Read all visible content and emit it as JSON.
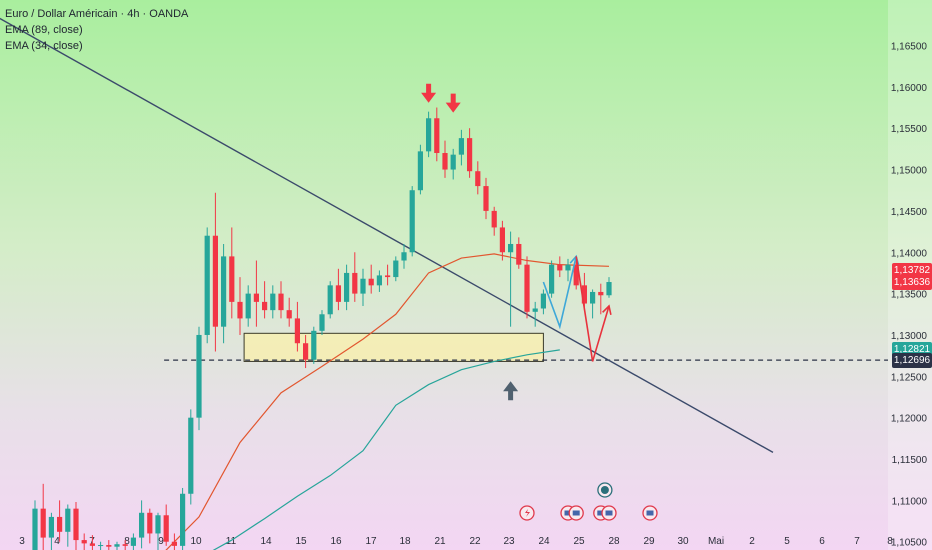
{
  "chart_data": {
    "type": "candlestick",
    "title": "Euro / Dollar Américain · 4h · OANDA",
    "indicators": [
      {
        "label": "EMA (89, close)",
        "color": "#e2562f"
      },
      {
        "label": "EMA (34, close)",
        "color": "#27a59a"
      }
    ],
    "xlabels": [
      "3",
      "4",
      "7",
      "8",
      "9",
      "10",
      "11",
      "14",
      "15",
      "16",
      "17",
      "18",
      "21",
      "22",
      "23",
      "24",
      "25",
      "28",
      "29",
      "30",
      "Mai",
      "2",
      "5",
      "6",
      "7",
      "8"
    ],
    "yticks": [
      "1,16500",
      "1,16000",
      "1,15500",
      "1,15000",
      "1,14500",
      "1,14000",
      "1,13500",
      "1,13000",
      "1,12500",
      "1,12000",
      "1,11500",
      "1,11000",
      "1,10500"
    ],
    "ylim": [
      1.104,
      1.1705
    ],
    "price_labels": [
      {
        "value": "1,13782",
        "price": 1.13782,
        "color": "#f23645"
      },
      {
        "value": "1,13636",
        "price": 1.13636,
        "color": "#f23645"
      },
      {
        "value": "1,12821",
        "price": 1.12821,
        "color": "#26a69a"
      },
      {
        "value": "1,12696",
        "price": 1.12696,
        "color": "#2b3247"
      }
    ],
    "dashed_level": 1.12696,
    "colors": {
      "up": "#26a69a",
      "down": "#f23645",
      "trendline": "#3b4a6b",
      "zone": "#f7efb0"
    },
    "candles": [
      [
        1.104,
        1.11,
        1.1034,
        1.109
      ],
      [
        1.109,
        1.112,
        1.104,
        1.1055
      ],
      [
        1.1055,
        1.1085,
        1.104,
        1.108
      ],
      [
        1.108,
        1.11,
        1.105,
        1.1062
      ],
      [
        1.1062,
        1.1095,
        1.1044,
        1.109
      ],
      [
        1.109,
        1.1098,
        1.104,
        1.1052
      ],
      [
        1.1052,
        1.106,
        1.104,
        1.1048
      ],
      [
        1.1048,
        1.1058,
        1.104,
        1.1045
      ],
      [
        1.1045,
        1.105,
        1.104,
        1.1046
      ],
      [
        1.1046,
        1.1052,
        1.104,
        1.1044
      ],
      [
        1.1044,
        1.105,
        1.104,
        1.1047
      ],
      [
        1.1047,
        1.1052,
        1.104,
        1.1045
      ],
      [
        1.1045,
        1.106,
        1.104,
        1.1055
      ],
      [
        1.1055,
        1.11,
        1.1042,
        1.1085
      ],
      [
        1.1085,
        1.109,
        1.1048,
        1.106
      ],
      [
        1.106,
        1.1085,
        1.104,
        1.1082
      ],
      [
        1.1082,
        1.1095,
        1.1045,
        1.105
      ],
      [
        1.105,
        1.106,
        1.104,
        1.1045
      ],
      [
        1.1045,
        1.1115,
        1.104,
        1.1108
      ],
      [
        1.1108,
        1.121,
        1.1095,
        1.12
      ],
      [
        1.12,
        1.131,
        1.1185,
        1.13
      ],
      [
        1.13,
        1.143,
        1.129,
        1.142
      ],
      [
        1.142,
        1.1472,
        1.128,
        1.131
      ],
      [
        1.131,
        1.141,
        1.129,
        1.1395
      ],
      [
        1.1395,
        1.143,
        1.132,
        1.134
      ],
      [
        1.134,
        1.137,
        1.13,
        1.132
      ],
      [
        1.132,
        1.136,
        1.131,
        1.135
      ],
      [
        1.135,
        1.139,
        1.131,
        1.134
      ],
      [
        1.134,
        1.1365,
        1.132,
        1.133
      ],
      [
        1.133,
        1.136,
        1.132,
        1.135
      ],
      [
        1.135,
        1.1365,
        1.132,
        1.133
      ],
      [
        1.133,
        1.1345,
        1.131,
        1.132
      ],
      [
        1.132,
        1.134,
        1.128,
        1.129
      ],
      [
        1.129,
        1.13,
        1.126,
        1.127
      ],
      [
        1.127,
        1.131,
        1.1265,
        1.1305
      ],
      [
        1.1305,
        1.133,
        1.13,
        1.1325
      ],
      [
        1.1325,
        1.1365,
        1.132,
        1.136
      ],
      [
        1.136,
        1.138,
        1.133,
        1.134
      ],
      [
        1.134,
        1.1385,
        1.133,
        1.1375
      ],
      [
        1.1375,
        1.14,
        1.134,
        1.135
      ],
      [
        1.135,
        1.138,
        1.1335,
        1.1368
      ],
      [
        1.1368,
        1.1385,
        1.135,
        1.136
      ],
      [
        1.136,
        1.1378,
        1.1352,
        1.1372
      ],
      [
        1.1372,
        1.1385,
        1.136,
        1.137
      ],
      [
        1.137,
        1.1395,
        1.1365,
        1.139
      ],
      [
        1.139,
        1.141,
        1.138,
        1.14
      ],
      [
        1.14,
        1.148,
        1.1395,
        1.1475
      ],
      [
        1.1475,
        1.153,
        1.147,
        1.1522
      ],
      [
        1.1522,
        1.157,
        1.1515,
        1.1562
      ],
      [
        1.1562,
        1.1575,
        1.151,
        1.152
      ],
      [
        1.152,
        1.1535,
        1.149,
        1.15
      ],
      [
        1.15,
        1.1525,
        1.1488,
        1.1518
      ],
      [
        1.1518,
        1.1548,
        1.1505,
        1.1538
      ],
      [
        1.1538,
        1.155,
        1.149,
        1.1498
      ],
      [
        1.1498,
        1.151,
        1.147,
        1.148
      ],
      [
        1.148,
        1.149,
        1.144,
        1.145
      ],
      [
        1.145,
        1.1455,
        1.142,
        1.143
      ],
      [
        1.143,
        1.1438,
        1.139,
        1.14
      ],
      [
        1.14,
        1.1425,
        1.131,
        1.141
      ],
      [
        1.141,
        1.1418,
        1.138,
        1.1385
      ],
      [
        1.1385,
        1.1395,
        1.132,
        1.1328
      ],
      [
        1.1328,
        1.134,
        1.131,
        1.1332
      ],
      [
        1.1332,
        1.1355,
        1.1325,
        1.135
      ],
      [
        1.135,
        1.139,
        1.1345,
        1.1385
      ],
      [
        1.1385,
        1.1395,
        1.137,
        1.1378
      ],
      [
        1.1378,
        1.1392,
        1.1365,
        1.1385
      ],
      [
        1.1385,
        1.1395,
        1.1355,
        1.136
      ],
      [
        1.136,
        1.1375,
        1.133,
        1.1338
      ],
      [
        1.1338,
        1.1355,
        1.132,
        1.1352
      ],
      [
        1.1352,
        1.1362,
        1.1325,
        1.1348
      ],
      [
        1.1348,
        1.137,
        1.1345,
        1.1364
      ]
    ],
    "ema89": [
      [
        15,
        1.103
      ],
      [
        20,
        1.108
      ],
      [
        25,
        1.117
      ],
      [
        30,
        1.123
      ],
      [
        35,
        1.1262
      ],
      [
        40,
        1.1295
      ],
      [
        44,
        1.1325
      ],
      [
        48,
        1.1375
      ],
      [
        52,
        1.1393
      ],
      [
        56,
        1.1398
      ],
      [
        60,
        1.139
      ],
      [
        64,
        1.1385
      ],
      [
        70,
        1.1383
      ]
    ],
    "ema34": [
      [
        20,
        1.103
      ],
      [
        24,
        1.1052
      ],
      [
        28,
        1.1078
      ],
      [
        32,
        1.1105
      ],
      [
        36,
        1.113
      ],
      [
        40,
        1.116
      ],
      [
        44,
        1.1215
      ],
      [
        48,
        1.124
      ],
      [
        52,
        1.1258
      ],
      [
        56,
        1.1268
      ],
      [
        60,
        1.1276
      ],
      [
        64,
        1.1282
      ]
    ],
    "trendline": [
      [
        -11,
        1.172
      ],
      [
        90,
        1.1158
      ]
    ],
    "support_zone": {
      "x0": 25.5,
      "x1": 62,
      "y0": 1.1268,
      "y1": 1.1302
    },
    "projection_blue": [
      [
        62,
        1.1364
      ],
      [
        64,
        1.131
      ],
      [
        66,
        1.1395
      ]
    ],
    "projection_red": [
      [
        66,
        1.1395
      ],
      [
        68,
        1.1268
      ],
      [
        70,
        1.1335
      ]
    ],
    "markers": {
      "down_red": [
        [
          48,
          1.1582
        ],
        [
          51,
          1.157
        ]
      ],
      "up_dark": [
        [
          58,
          1.1244
        ]
      ]
    },
    "event_icons": [
      {
        "x": 60,
        "type": "lightning"
      },
      {
        "x": 65,
        "type": "flag"
      },
      {
        "x": 66,
        "type": "flag"
      },
      {
        "x": 69,
        "type": "flag"
      },
      {
        "x": 70,
        "type": "flag"
      },
      {
        "x": 69.5,
        "type": "stack"
      },
      {
        "x": 75,
        "type": "flag"
      }
    ]
  }
}
